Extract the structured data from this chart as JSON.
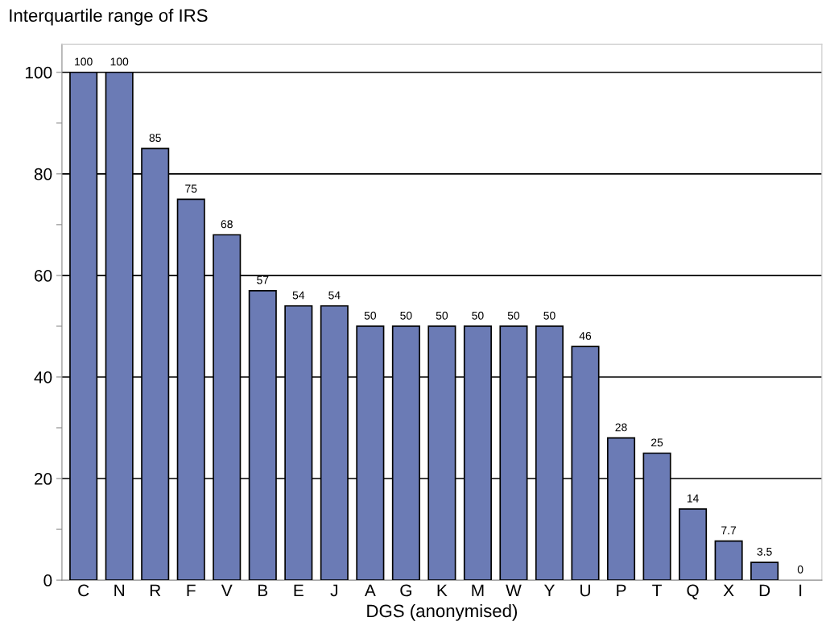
{
  "chart_data": {
    "type": "bar",
    "title": "Interquartile range of IRS",
    "xlabel": "DGS (anonymised)",
    "categories": [
      "C",
      "N",
      "R",
      "F",
      "V",
      "B",
      "E",
      "J",
      "A",
      "G",
      "K",
      "M",
      "W",
      "Y",
      "U",
      "P",
      "T",
      "Q",
      "X",
      "D",
      "I"
    ],
    "values": [
      100,
      100,
      85,
      75,
      68,
      57,
      54,
      54,
      50,
      50,
      50,
      50,
      50,
      50,
      46,
      28,
      25,
      14,
      7.7,
      3.5,
      0
    ],
    "color": "#6b7bb5",
    "data_labels": true,
    "grid": "y",
    "ylim": [
      0,
      105.5
    ],
    "yticks": [
      0,
      {
        "value": 10,
        "label": null
      },
      20,
      {
        "value": 30,
        "label": null
      },
      40,
      {
        "value": 50,
        "label": null
      },
      60,
      {
        "value": 70,
        "label": null
      },
      80,
      {
        "value": 90,
        "label": null
      },
      100
    ]
  }
}
